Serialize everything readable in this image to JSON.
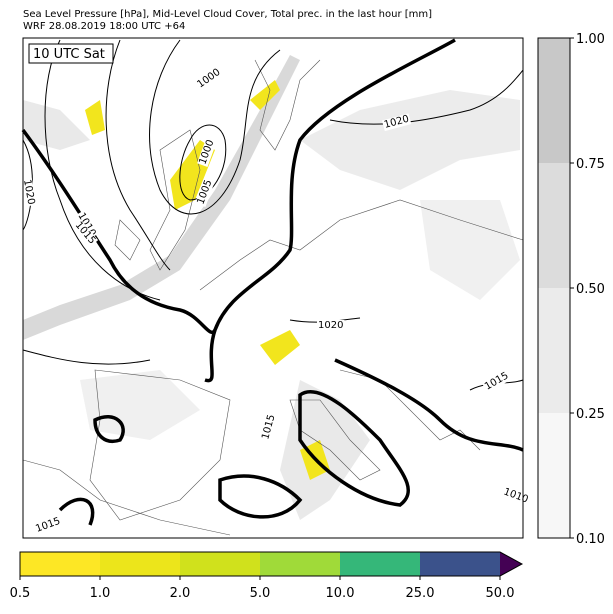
{
  "header": {
    "line1": "Sea Level Pressure [hPa], Mid-Level Cloud Cover, Total prec. in the last hour [mm]",
    "line2": "WRF 28.08.2019 18:00 UTC +64"
  },
  "map": {
    "time_label": "10 UTC Sat",
    "contour_labels": [
      "1000",
      "1000",
      "1005",
      "1010",
      "1015",
      "1020",
      "1020",
      "1020",
      "1015",
      "1015",
      "1010",
      "1015"
    ]
  },
  "cloud_colorbar": {
    "ticks": [
      "1.00",
      "0.75",
      "0.50",
      "0.25",
      "0.10"
    ]
  },
  "precip_colorbar": {
    "ticks": [
      "0.5",
      "1.0",
      "2.0",
      "5.0",
      "10.0",
      "25.0",
      "50.0"
    ]
  }
}
